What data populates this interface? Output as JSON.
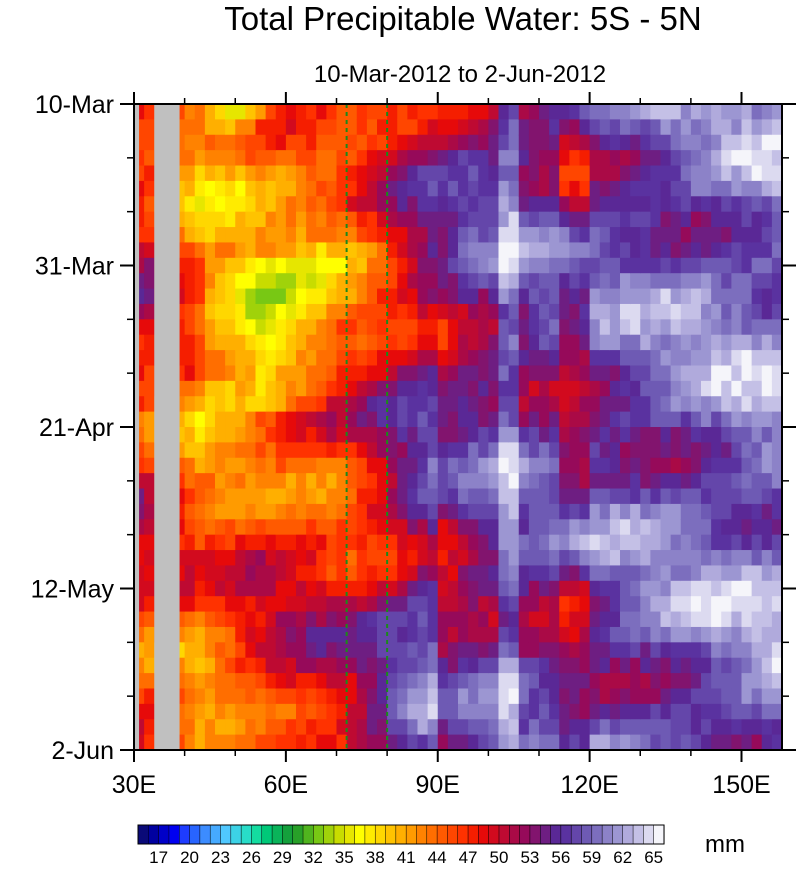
{
  "chart_data": {
    "type": "heatmap",
    "title": "Total Precipitable Water: 5S - 5N",
    "subtitle": "10-Mar-2012 to 2-Jun-2012",
    "xlabel": "",
    "ylabel": "",
    "x_ticks": [
      {
        "value": 30,
        "label": "30E"
      },
      {
        "value": 60,
        "label": "60E"
      },
      {
        "value": 90,
        "label": "90E"
      },
      {
        "value": 120,
        "label": "120E"
      },
      {
        "value": 150,
        "label": "150E"
      }
    ],
    "y_ticks": [
      {
        "value": 0,
        "label": "10-Mar"
      },
      {
        "value": 21,
        "label": "31-Mar"
      },
      {
        "value": 42,
        "label": "21-Apr"
      },
      {
        "value": 63,
        "label": "12-May"
      },
      {
        "value": 84,
        "label": "2-Jun"
      }
    ],
    "xlim": [
      30,
      158
    ],
    "ylim": [
      0,
      84
    ],
    "y_reversed": true,
    "grid": false,
    "reference_lines": [
      {
        "x": 72,
        "color": "#1a8a1a",
        "style": "dashed"
      },
      {
        "x": 80,
        "color": "#1a8a1a",
        "style": "dashed"
      }
    ],
    "missing_region": {
      "x_range": [
        34,
        39
      ],
      "color": "#c0c0c0"
    },
    "colorbar": {
      "unit_label": "mm",
      "labels": [
        "17",
        "20",
        "23",
        "26",
        "29",
        "32",
        "35",
        "38",
        "41",
        "44",
        "47",
        "50",
        "53",
        "56",
        "59",
        "62",
        "65"
      ],
      "levels": [
        16,
        17,
        18,
        19,
        20,
        21,
        22,
        23,
        24,
        25,
        26,
        27,
        28,
        29,
        30,
        31,
        32,
        33,
        34,
        35,
        36,
        37,
        38,
        39,
        40,
        41,
        42,
        43,
        44,
        45,
        46,
        47,
        48,
        49,
        50,
        51,
        52,
        53,
        54,
        55,
        56,
        57,
        58,
        59,
        60,
        61,
        62,
        63,
        64,
        65,
        66
      ],
      "colors": [
        "#0a0a78",
        "#0000a0",
        "#0000c8",
        "#0000f0",
        "#1e3cff",
        "#2864ff",
        "#3c8cff",
        "#46aaff",
        "#50c8ff",
        "#3cd2e6",
        "#28dcc8",
        "#14dca0",
        "#00c878",
        "#0ab45a",
        "#14a03c",
        "#28a028",
        "#50b41e",
        "#78c814",
        "#a0d20a",
        "#c8dc00",
        "#e6e600",
        "#ffff00",
        "#ffeb00",
        "#ffd700",
        "#ffc300",
        "#ffaf00",
        "#ff9b00",
        "#ff8200",
        "#ff6e00",
        "#ff5a00",
        "#ff4600",
        "#ff3200",
        "#f51e00",
        "#e60a0a",
        "#d20a1e",
        "#be0a32",
        "#aa0a46",
        "#960a5a",
        "#82146e",
        "#6e1e82",
        "#5a2896",
        "#5a32a0",
        "#6446aa",
        "#6e5ab4",
        "#7c6ebe",
        "#8c82c8",
        "#9c96d2",
        "#b0aadc",
        "#c4c0e6",
        "#dcdaf0",
        "#f5f5fa"
      ]
    }
  }
}
